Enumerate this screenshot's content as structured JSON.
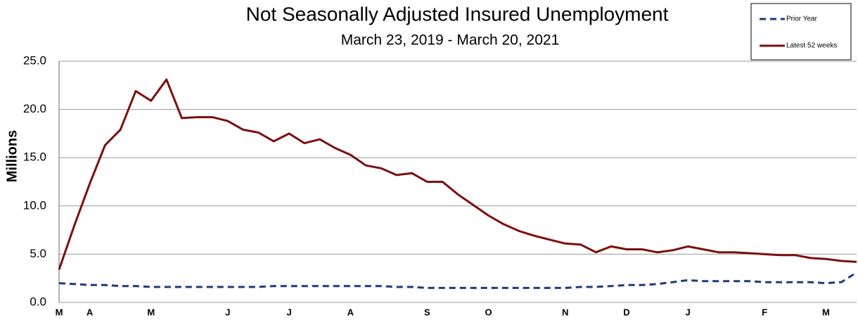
{
  "chart_data": {
    "type": "line",
    "title": "Not Seasonally Adjusted Insured Unemployment",
    "subtitle": "March 23, 2019 - March 20, 2021",
    "y_label": "Millions",
    "categories": [
      "M",
      null,
      "A",
      null,
      null,
      null,
      "M",
      null,
      null,
      null,
      null,
      "J",
      null,
      null,
      null,
      "J",
      null,
      null,
      null,
      "A",
      null,
      null,
      null,
      null,
      "S",
      null,
      null,
      null,
      "O",
      null,
      null,
      null,
      null,
      "N",
      null,
      null,
      null,
      "D",
      null,
      null,
      null,
      "J",
      null,
      null,
      null,
      null,
      "F",
      null,
      null,
      null,
      "M",
      null,
      null
    ],
    "series": [
      {
        "name": "Prior Year",
        "color": "#1f3a7a",
        "dashed": true,
        "values": [
          2.0,
          1.9,
          1.8,
          1.8,
          1.7,
          1.7,
          1.6,
          1.6,
          1.6,
          1.6,
          1.6,
          1.6,
          1.6,
          1.6,
          1.7,
          1.7,
          1.7,
          1.7,
          1.7,
          1.7,
          1.7,
          1.7,
          1.6,
          1.6,
          1.5,
          1.5,
          1.5,
          1.5,
          1.5,
          1.5,
          1.5,
          1.5,
          1.5,
          1.5,
          1.6,
          1.6,
          1.7,
          1.8,
          1.8,
          1.9,
          2.1,
          2.3,
          2.2,
          2.2,
          2.2,
          2.2,
          2.1,
          2.1,
          2.1,
          2.1,
          2.0,
          2.1,
          3.1
        ]
      },
      {
        "name": "Latest 52 weeks",
        "color": "#7b0f0f",
        "dashed": false,
        "values": [
          3.4,
          8.0,
          12.3,
          16.3,
          17.9,
          21.9,
          20.9,
          23.1,
          19.1,
          19.2,
          19.2,
          18.8,
          17.9,
          17.6,
          16.7,
          17.5,
          16.5,
          16.9,
          16.0,
          15.3,
          14.2,
          13.9,
          13.2,
          13.4,
          12.5,
          12.5,
          11.2,
          10.1,
          9.0,
          8.1,
          7.4,
          6.9,
          6.5,
          6.1,
          6.0,
          5.2,
          5.8,
          5.5,
          5.5,
          5.2,
          5.4,
          5.8,
          5.5,
          5.2,
          5.2,
          5.1,
          5.0,
          4.9,
          4.9,
          4.6,
          4.5,
          4.3,
          4.2
        ]
      }
    ],
    "ylim": [
      0,
      25
    ],
    "yticks": [
      {
        "value": 0,
        "label": "0.0"
      },
      {
        "value": 5,
        "label": "5.0"
      },
      {
        "value": 10,
        "label": "10.0"
      },
      {
        "value": 15,
        "label": "15.0"
      },
      {
        "value": 20,
        "label": "20.0"
      },
      {
        "value": 25,
        "label": "25.0"
      }
    ],
    "grid": true,
    "legend": "upper right"
  }
}
